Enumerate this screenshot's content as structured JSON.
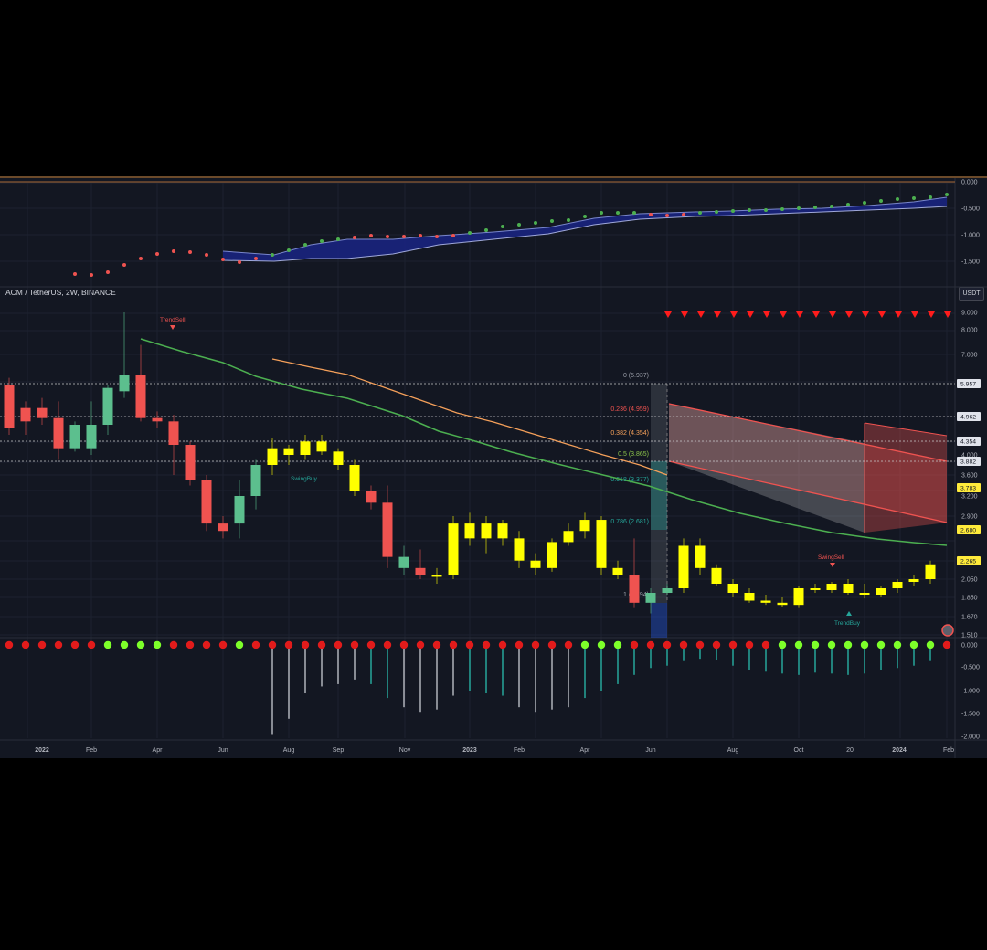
{
  "header": {
    "symbol": "ACM / TetherUS, 2W, BINANCE",
    "quote_button": "USDT"
  },
  "colors": {
    "background": "#131722",
    "up": "#26a69a",
    "up_fill": "#5cbf8e",
    "down": "#ef5350",
    "yellow": "#ffff00",
    "sma_green": "#4caf50",
    "sma_orange": "#f5a05a",
    "osc_dot_red": "#e21b1b",
    "osc_dot_green": "#7dff2a",
    "osc_blue": "#1a237e"
  },
  "time_axis": [
    "2022",
    "Feb",
    "Apr",
    "Jun",
    "Aug",
    "Sep",
    "Nov",
    "2023",
    "Feb",
    "Apr",
    "Jun",
    "Aug",
    "Oct",
    "20",
    "2024",
    "Feb"
  ],
  "top_indicator": {
    "ticks": [
      "0.000",
      "-0.500",
      "-1.000",
      "-1.500"
    ]
  },
  "main_pane": {
    "price_ticks": [
      "9.000",
      "8.000",
      "7.000",
      "4.000",
      "3.600",
      "3.200",
      "2.900",
      "2.050",
      "1.850",
      "1.670",
      "1.510"
    ],
    "price_tags": [
      {
        "label": "5.957",
        "kind": "white"
      },
      {
        "label": "4.962",
        "kind": "white"
      },
      {
        "label": "4.354",
        "kind": "white"
      },
      {
        "label": "3.882",
        "kind": "white"
      },
      {
        "label": "3.783",
        "kind": "yellow"
      },
      {
        "label": "2.680",
        "kind": "yellow"
      },
      {
        "label": "2.265",
        "kind": "yellow"
      }
    ],
    "fib_levels": [
      {
        "label": "0 (5.937)"
      },
      {
        "label": "0.236 (4.959)"
      },
      {
        "label": "0.382 (4.354)"
      },
      {
        "label": "0.5 (3.865)"
      },
      {
        "label": "0.618 (3.377)"
      },
      {
        "label": "0.786 (2.681)"
      },
      {
        "label": "1 (1.794)"
      }
    ],
    "annotations": {
      "trend_sell": "TrendSell",
      "trend_buy": "TrendBuy",
      "swing_sell": "SwingSell",
      "swing_buy": "SwingBuy"
    }
  },
  "bottom_indicator": {
    "ticks": [
      "0.000",
      "-0.500",
      "-1.000",
      "-1.500",
      "-2.000"
    ]
  },
  "chart_data": {
    "type": "candlestick",
    "symbol": "ACM / TetherUS",
    "interval": "2W",
    "exchange": "BINANCE",
    "candles": [
      [
        6.1,
        6.3,
        4.6,
        4.8
      ],
      [
        5.0,
        5.6,
        4.6,
        5.4
      ],
      [
        5.4,
        5.7,
        4.9,
        5.1
      ],
      [
        5.1,
        5.6,
        3.9,
        4.2
      ],
      [
        4.2,
        5.0,
        4.1,
        4.9
      ],
      [
        4.2,
        5.6,
        4.0,
        4.9
      ],
      [
        4.9,
        6.1,
        4.6,
        6.0
      ],
      [
        5.9,
        9.0,
        5.7,
        6.4
      ],
      [
        6.4,
        7.4,
        5.0,
        5.1
      ],
      [
        5.1,
        5.3,
        4.8,
        5.0
      ],
      [
        5.0,
        5.2,
        3.6,
        4.3
      ],
      [
        4.3,
        4.4,
        3.4,
        3.5
      ],
      [
        3.5,
        3.6,
        2.7,
        2.8
      ],
      [
        2.8,
        2.9,
        2.6,
        2.7
      ],
      [
        2.8,
        3.5,
        2.6,
        3.2
      ],
      [
        3.2,
        3.9,
        3.0,
        3.8
      ],
      [
        3.8,
        4.5,
        3.6,
        4.2
      ],
      [
        4.2,
        4.3,
        3.8,
        4.0
      ],
      [
        4.0,
        4.6,
        3.9,
        4.4
      ],
      [
        4.4,
        4.6,
        4.0,
        4.1
      ],
      [
        4.1,
        4.2,
        3.7,
        3.8
      ],
      [
        3.8,
        3.9,
        3.2,
        3.3
      ],
      [
        3.3,
        3.4,
        3.0,
        3.1
      ],
      [
        3.1,
        3.4,
        2.2,
        2.35
      ],
      [
        2.35,
        2.5,
        2.1,
        2.2
      ],
      [
        2.2,
        2.45,
        2.05,
        2.1
      ],
      [
        2.1,
        2.2,
        2.0,
        2.1
      ],
      [
        2.1,
        2.9,
        2.05,
        2.8
      ],
      [
        2.8,
        2.95,
        2.5,
        2.6
      ],
      [
        2.6,
        2.9,
        2.4,
        2.8
      ],
      [
        2.8,
        2.85,
        2.5,
        2.6
      ],
      [
        2.6,
        2.7,
        2.2,
        2.3
      ],
      [
        2.3,
        2.4,
        2.1,
        2.2
      ],
      [
        2.2,
        2.6,
        2.15,
        2.55
      ],
      [
        2.55,
        2.8,
        2.5,
        2.7
      ],
      [
        2.7,
        2.95,
        2.6,
        2.85
      ],
      [
        2.85,
        2.9,
        2.1,
        2.2
      ],
      [
        2.2,
        2.3,
        2.05,
        2.1
      ],
      [
        2.1,
        2.6,
        1.75,
        1.8
      ],
      [
        1.8,
        1.95,
        1.7,
        1.9
      ],
      [
        1.9,
        2.0,
        1.88,
        1.95
      ],
      [
        1.95,
        2.6,
        1.9,
        2.5
      ],
      [
        2.5,
        2.6,
        2.1,
        2.2
      ],
      [
        2.2,
        2.25,
        1.98,
        2.0
      ],
      [
        2.0,
        2.05,
        1.85,
        1.9
      ],
      [
        1.9,
        1.95,
        1.8,
        1.82
      ],
      [
        1.82,
        1.88,
        1.78,
        1.8
      ],
      [
        1.8,
        1.85,
        1.76,
        1.78
      ],
      [
        1.78,
        1.98,
        1.75,
        1.95
      ],
      [
        1.95,
        2.0,
        1.9,
        1.93
      ],
      [
        1.93,
        2.02,
        1.9,
        2.0
      ],
      [
        2.0,
        2.05,
        1.88,
        1.9
      ],
      [
        1.9,
        2.0,
        1.84,
        1.88
      ],
      [
        1.88,
        1.98,
        1.85,
        1.95
      ],
      [
        1.95,
        2.05,
        1.9,
        2.02
      ],
      [
        2.02,
        2.1,
        1.98,
        2.05
      ],
      [
        2.05,
        2.3,
        2.0,
        2.25
      ]
    ],
    "candle_colors": [
      "d",
      "d",
      "d",
      "d",
      "u",
      "u",
      "u",
      "u",
      "d",
      "d",
      "d",
      "d",
      "d",
      "d",
      "u",
      "u",
      "y",
      "y",
      "y",
      "y",
      "y",
      "y",
      "d",
      "d",
      "u",
      "d",
      "y",
      "y",
      "y",
      "y",
      "y",
      "y",
      "y",
      "y",
      "y",
      "y",
      "y",
      "y",
      "d",
      "u",
      "u",
      "y",
      "y",
      "y",
      "y",
      "y",
      "y",
      "y",
      "y",
      "y",
      "y",
      "y",
      "y",
      "y",
      "y",
      "y",
      "y"
    ]
  }
}
